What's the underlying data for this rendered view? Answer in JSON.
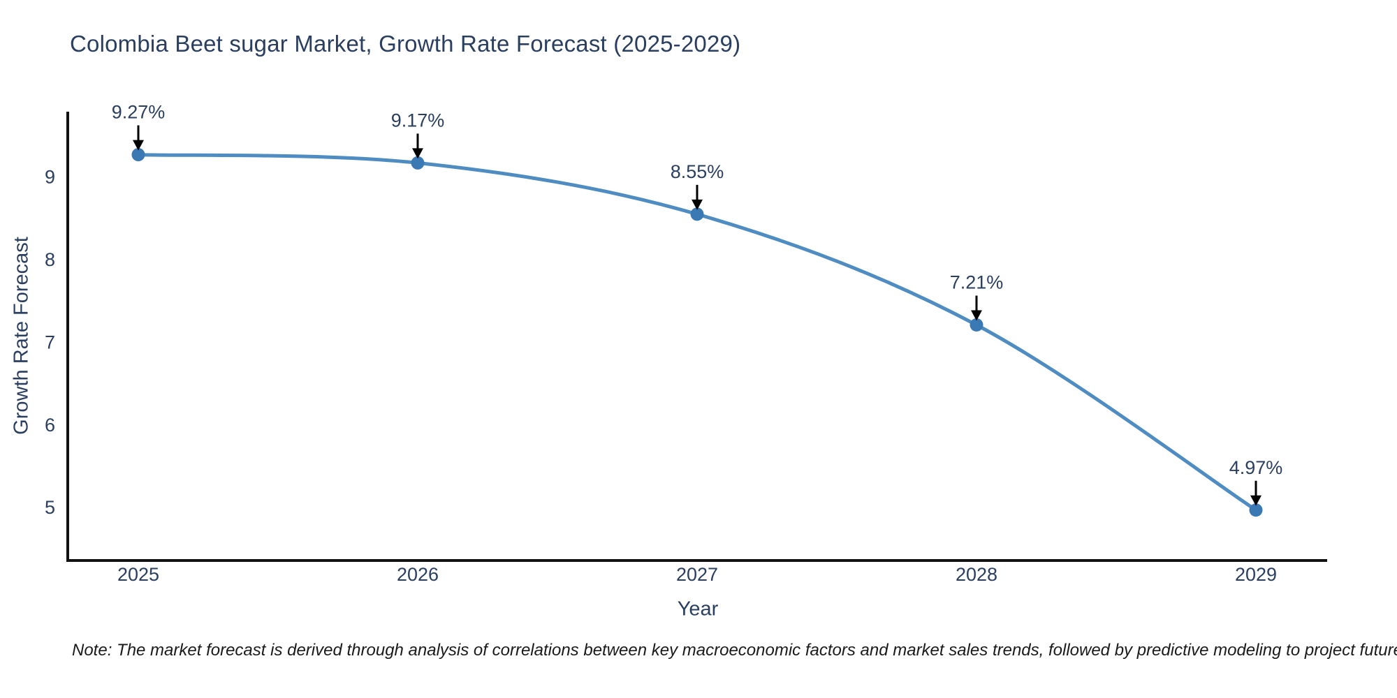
{
  "title": "Colombia Beet sugar Market, Growth Rate Forecast (2025-2029)",
  "note": "Note: The market forecast is derived through analysis of correlations between key macroeconomic factors and market sales trends, followed by predictive modeling to project future sales.",
  "chart_data": {
    "type": "line",
    "title": "Colombia Beet sugar Market, Growth Rate Forecast (2025-2029)",
    "xlabel": "Year",
    "ylabel": "Growth Rate Forecast",
    "categories": [
      "2025",
      "2026",
      "2027",
      "2028",
      "2029"
    ],
    "series": [
      {
        "name": "Growth Rate Forecast",
        "values": [
          9.27,
          9.17,
          8.55,
          7.21,
          4.97
        ],
        "point_labels": [
          "9.27%",
          "9.17%",
          "8.55%",
          "7.21%",
          "4.97%"
        ]
      }
    ],
    "yticks": [
      5,
      6,
      7,
      8,
      9
    ],
    "ylim": [
      4.36,
      9.79
    ],
    "grid": false,
    "legend_position": "none",
    "line_shape": "spline",
    "annotation_style": "value label with black down-arrow to each marker",
    "colors": {
      "line": "#4e8cc2",
      "marker": "#3b79b5",
      "axis_line": "#111111",
      "tick_text": "#2a3f5f",
      "annotation_text": "#2a3f5f",
      "annotation_arrow": "#000000",
      "background": "#ffffff"
    }
  }
}
